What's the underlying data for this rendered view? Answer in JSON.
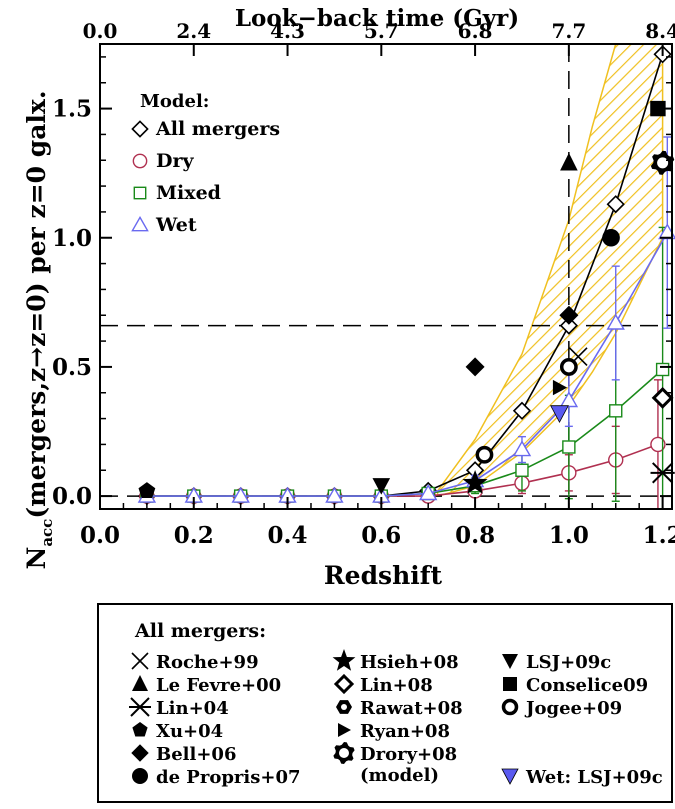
{
  "chart_data": {
    "type": "line",
    "title": "",
    "xlabel": "Redshift",
    "ylabel_main": "N",
    "ylabel_sub": "acc",
    "ylabel_rest": "(mergers,z→z=0) per z=0 galx.",
    "top_xlabel": "Look−back time (Gyr)",
    "xlim": [
      0.0,
      1.22
    ],
    "ylim": [
      -0.05,
      1.75
    ],
    "x_ticks": [
      "0.0",
      "0.2",
      "0.4",
      "0.6",
      "0.8",
      "1.0",
      "1.2"
    ],
    "x_tick_values": [
      0.0,
      0.2,
      0.4,
      0.6,
      0.8,
      1.0,
      1.2
    ],
    "y_ticks": [
      "0.0",
      "0.5",
      "1.0",
      "1.5"
    ],
    "y_tick_values": [
      0.0,
      0.5,
      1.0,
      1.5
    ],
    "top_ticks": [
      "0.0",
      "2.4",
      "4.3",
      "5.7",
      "6.8",
      "7.7",
      "8.4"
    ],
    "top_tick_positions": [
      0.0,
      0.2,
      0.4,
      0.6,
      0.8,
      1.0,
      1.2
    ],
    "reference_lines": {
      "horizontal_y": [
        0.0,
        0.66
      ],
      "vertical_x": [
        1.0
      ]
    },
    "legend_title": "Model:",
    "series": [
      {
        "name": "All mergers",
        "marker": "diamond-open",
        "color": "#000000",
        "x": [
          0.1,
          0.2,
          0.3,
          0.4,
          0.5,
          0.6,
          0.7,
          0.8,
          0.9,
          1.0,
          1.1,
          1.2
        ],
        "y": [
          0.0,
          0.0,
          0.0,
          0.0,
          0.0,
          0.0,
          0.02,
          0.1,
          0.33,
          0.66,
          1.13,
          1.71
        ]
      },
      {
        "name": "Dry",
        "marker": "circle-open",
        "color": "#b03050",
        "x": [
          0.1,
          0.2,
          0.3,
          0.4,
          0.5,
          0.6,
          0.7,
          0.8,
          0.9,
          1.0,
          1.1,
          1.19
        ],
        "y": [
          0.0,
          0.0,
          0.0,
          0.0,
          0.0,
          0.0,
          0.0,
          0.02,
          0.05,
          0.09,
          0.14,
          0.2
        ],
        "err": [
          0,
          0,
          0,
          0,
          0,
          0,
          0,
          0.02,
          0.04,
          0.07,
          0.13,
          0.25
        ]
      },
      {
        "name": "Mixed",
        "marker": "square-open",
        "color": "#1a8a1a",
        "x": [
          0.1,
          0.2,
          0.3,
          0.4,
          0.5,
          0.6,
          0.7,
          0.8,
          0.9,
          1.0,
          1.1,
          1.2
        ],
        "y": [
          0.0,
          0.0,
          0.0,
          0.0,
          0.0,
          0.0,
          0.01,
          0.04,
          0.1,
          0.19,
          0.33,
          0.49
        ],
        "err": [
          0,
          0,
          0,
          0,
          0,
          0,
          0,
          0.03,
          0.08,
          0.2,
          0.35,
          0.55
        ]
      },
      {
        "name": "Wet",
        "marker": "triangle-open",
        "color": "#6a6af0",
        "x": [
          0.1,
          0.2,
          0.3,
          0.4,
          0.5,
          0.6,
          0.7,
          0.8,
          0.9,
          1.0,
          1.1,
          1.21
        ],
        "y": [
          0.0,
          0.0,
          0.0,
          0.0,
          0.0,
          0.0,
          0.01,
          0.06,
          0.18,
          0.37,
          0.67,
          1.02
        ],
        "err": [
          0,
          0,
          0,
          0,
          0,
          0,
          0,
          0.02,
          0.05,
          0.1,
          0.22,
          0.37
        ]
      }
    ],
    "hatched_band": {
      "color": "#f0c020",
      "x": [
        0.72,
        0.8,
        0.9,
        1.0,
        1.05,
        1.1,
        1.2
      ],
      "lower": [
        0.0,
        0.04,
        0.17,
        0.35,
        0.48,
        0.63,
        1.0
      ],
      "upper": [
        0.02,
        0.22,
        0.55,
        1.07,
        1.43,
        1.75,
        1.75
      ]
    },
    "observations": [
      {
        "name": "Roche+99",
        "marker": "x",
        "points": [
          [
            1.02,
            0.54
          ]
        ]
      },
      {
        "name": "Le Fevre+00",
        "marker": "triangle-filled",
        "points": [
          [
            1.0,
            1.29
          ]
        ]
      },
      {
        "name": "Lin+04",
        "marker": "asterisk",
        "points": [
          [
            1.2,
            0.09
          ]
        ]
      },
      {
        "name": "Xu+04",
        "marker": "pentagon-filled",
        "points": [
          [
            0.1,
            0.02
          ]
        ]
      },
      {
        "name": "Bell+06",
        "marker": "diamond-filled",
        "points": [
          [
            0.8,
            0.5
          ],
          [
            1.0,
            0.7
          ]
        ]
      },
      {
        "name": "de Propris+07",
        "marker": "circle-filled",
        "points": [
          [
            1.09,
            1.0
          ]
        ]
      },
      {
        "name": "Hsieh+08",
        "marker": "star-filled",
        "points": [
          [
            0.8,
            0.05
          ]
        ]
      },
      {
        "name": "Lin+08",
        "marker": "diamond-thick",
        "points": [
          [
            1.2,
            0.38
          ]
        ]
      },
      {
        "name": "Rawat+08",
        "marker": "hexagon-filled",
        "points": []
      },
      {
        "name": "Ryan+08",
        "marker": "triangle-right",
        "points": [
          [
            0.98,
            0.42
          ]
        ]
      },
      {
        "name": "Drory+08 (model)",
        "marker": "gear-open",
        "points": [
          [
            1.2,
            1.29
          ]
        ]
      },
      {
        "name": "LSJ+09c",
        "marker": "triangle-down",
        "points": [
          [
            0.6,
            0.04
          ]
        ]
      },
      {
        "name": "Conselice09",
        "marker": "square-filled",
        "points": [
          [
            1.19,
            1.5
          ]
        ]
      },
      {
        "name": "Jogee+09",
        "marker": "circle-thick",
        "points": [
          [
            0.82,
            0.16
          ],
          [
            1.0,
            0.5
          ]
        ]
      },
      {
        "name": "Wet: LSJ+09c",
        "marker": "triangle-down-blue",
        "points": [
          [
            0.98,
            0.32
          ]
        ]
      }
    ],
    "legend_box": {
      "title": "All mergers:",
      "entries": [
        "Roche+99",
        "Le Fevre+00",
        "Lin+04",
        "Xu+04",
        "Bell+06",
        "de Propris+07",
        "Hsieh+08",
        "Lin+08",
        "Rawat+08",
        "Ryan+08",
        "Drory+08",
        "(model)",
        "LSJ+09c",
        "Conselice09",
        "Jogee+09",
        "Wet: LSJ+09c"
      ]
    }
  }
}
